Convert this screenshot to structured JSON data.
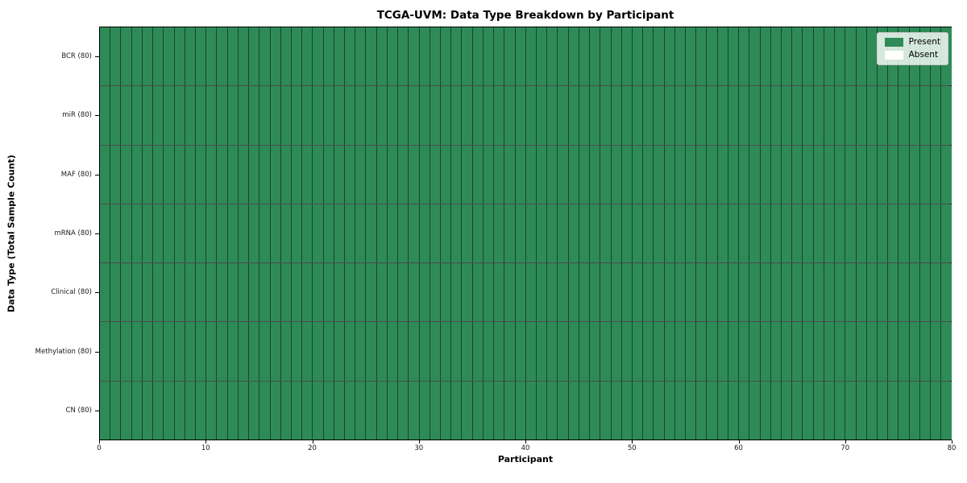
{
  "chart_data": {
    "type": "heatmap",
    "title": "TCGA-UVM: Data Type Breakdown by Participant",
    "xlabel": "Participant",
    "ylabel": "Data Type (Total Sample Count)",
    "xlim": [
      0,
      80
    ],
    "x_ticks": [
      0,
      10,
      20,
      30,
      40,
      50,
      60,
      70,
      80
    ],
    "n_participants": 80,
    "all_cells_present": true,
    "rows": [
      {
        "label": "BCR (80)",
        "data_type": "BCR",
        "total_samples": 80,
        "present": 80,
        "absent": 0
      },
      {
        "label": "miR (80)",
        "data_type": "miR",
        "total_samples": 80,
        "present": 80,
        "absent": 0
      },
      {
        "label": "MAF (80)",
        "data_type": "MAF",
        "total_samples": 80,
        "present": 80,
        "absent": 0
      },
      {
        "label": "mRNA (80)",
        "data_type": "mRNA",
        "total_samples": 80,
        "present": 80,
        "absent": 0
      },
      {
        "label": "Clinical (80)",
        "data_type": "Clinical",
        "total_samples": 80,
        "present": 80,
        "absent": 0
      },
      {
        "label": "Methylation (80)",
        "data_type": "Methylation",
        "total_samples": 80,
        "present": 80,
        "absent": 0
      },
      {
        "label": "CN (80)",
        "data_type": "CN",
        "total_samples": 80,
        "present": 80,
        "absent": 0
      }
    ],
    "legend": {
      "position": "upper right",
      "entries": [
        {
          "label": "Present",
          "color": "#2e8b57"
        },
        {
          "label": "Absent",
          "color": "#ffffff"
        }
      ]
    },
    "colors": {
      "present": "#2e8b57",
      "absent": "#ffffff",
      "axis": "#000000"
    },
    "grid": true,
    "legend_labels": {
      "present": "Present",
      "absent": "Absent"
    }
  }
}
